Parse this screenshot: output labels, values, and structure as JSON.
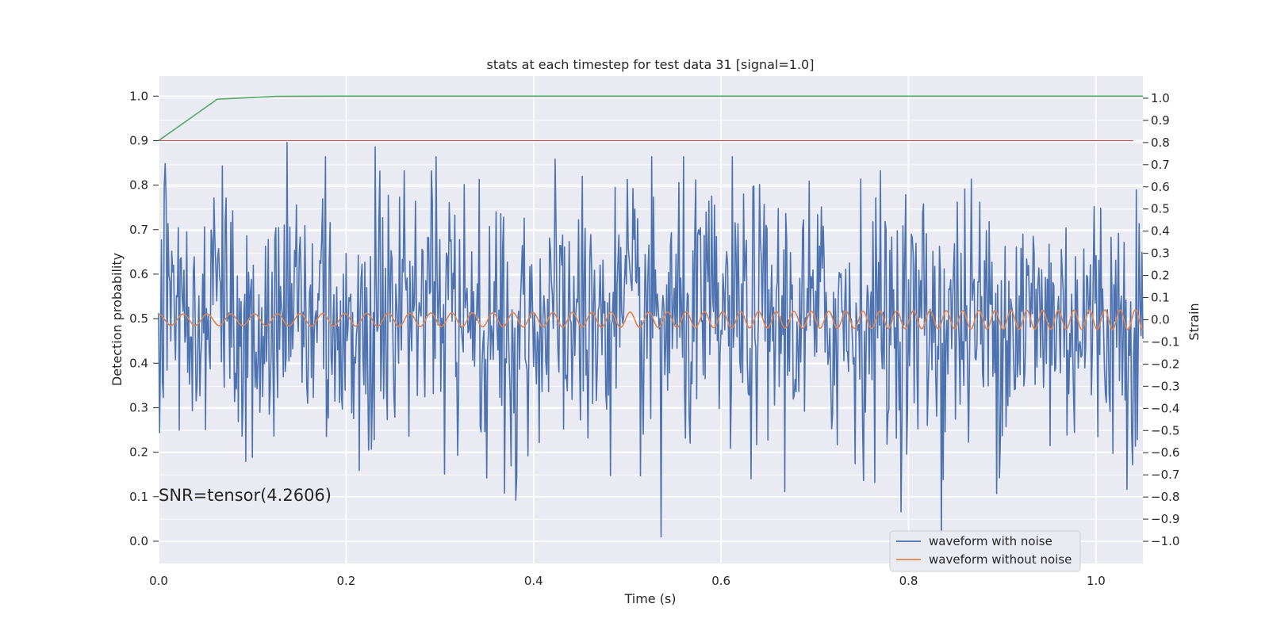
{
  "chart_data": {
    "type": "line",
    "title": "stats at each timestep for test data 31 [signal=1.0]",
    "xlabel": "Time (s)",
    "ylabel_left": "Detection probability",
    "ylabel_right": "Strain",
    "xlim": [
      0.0,
      1.05
    ],
    "ylim_left": [
      -0.05,
      1.045
    ],
    "ylim_right": [
      -1.1,
      1.1
    ],
    "x_ticks": [
      "0.0",
      "0.2",
      "0.4",
      "0.6",
      "0.8",
      "1.0"
    ],
    "y_ticks_left": [
      "0.0",
      "0.1",
      "0.2",
      "0.3",
      "0.4",
      "0.5",
      "0.6",
      "0.7",
      "0.8",
      "0.9",
      "1.0"
    ],
    "y_ticks_right": [
      "−1.0",
      "−0.9",
      "−0.8",
      "−0.7",
      "−0.6",
      "−0.5",
      "−0.4",
      "−0.3",
      "−0.2",
      "−0.1",
      "0.0",
      "0.1",
      "0.2",
      "0.3",
      "0.4",
      "0.5",
      "0.6",
      "0.7",
      "0.8",
      "0.9",
      "1.0"
    ],
    "grid": true,
    "annotation": "SNR=tensor(4.2606)",
    "legend": {
      "placement": "lower-right",
      "entries": [
        {
          "label": "waveform with noise",
          "color": "#4c72b0"
        },
        {
          "label": "waveform without noise",
          "color": "#dd8452"
        }
      ]
    },
    "threshold_line": {
      "axis": "left",
      "y": 0.9,
      "x_start": 0.0,
      "x_end": 1.04,
      "color": "#c44e52"
    },
    "detection_probability": {
      "axis": "left",
      "color": "#55a868",
      "x": [
        0.0,
        0.0625,
        0.125,
        0.1875,
        0.25,
        0.3125,
        0.375,
        0.4375,
        0.5,
        0.5625,
        0.625,
        0.6875,
        0.75,
        0.8125,
        0.875,
        0.9375,
        1.0,
        1.05
      ],
      "y": [
        0.9,
        0.993,
        0.9995,
        1.0,
        1.0,
        1.0,
        1.0,
        1.0,
        1.0,
        1.0,
        1.0,
        1.0,
        1.0,
        1.0,
        1.0,
        1.0,
        1.0,
        1.0
      ]
    },
    "series": [
      {
        "name": "waveform with noise",
        "axis": "right",
        "color": "#4c72b0",
        "sample_interval": 0.001,
        "x_start": 0.0,
        "x_end": 1.05,
        "approx_std": 0.3,
        "approx_range": [
          -1.02,
          0.8
        ],
        "approx_extremes": [
          {
            "x": 0.137,
            "y": 0.8
          },
          {
            "x": 0.231,
            "y": 0.78
          },
          {
            "x": 0.536,
            "y": -0.98
          },
          {
            "x": 0.835,
            "y": -1.02
          }
        ]
      },
      {
        "name": "waveform without noise",
        "axis": "right",
        "color": "#dd8452",
        "x_start": 0.0,
        "x_end": 1.05,
        "approx_amplitude_start": 0.025,
        "approx_amplitude_end": 0.045,
        "approx_frequency_start_hz": 38,
        "approx_frequency_end_hz": 62
      }
    ]
  }
}
